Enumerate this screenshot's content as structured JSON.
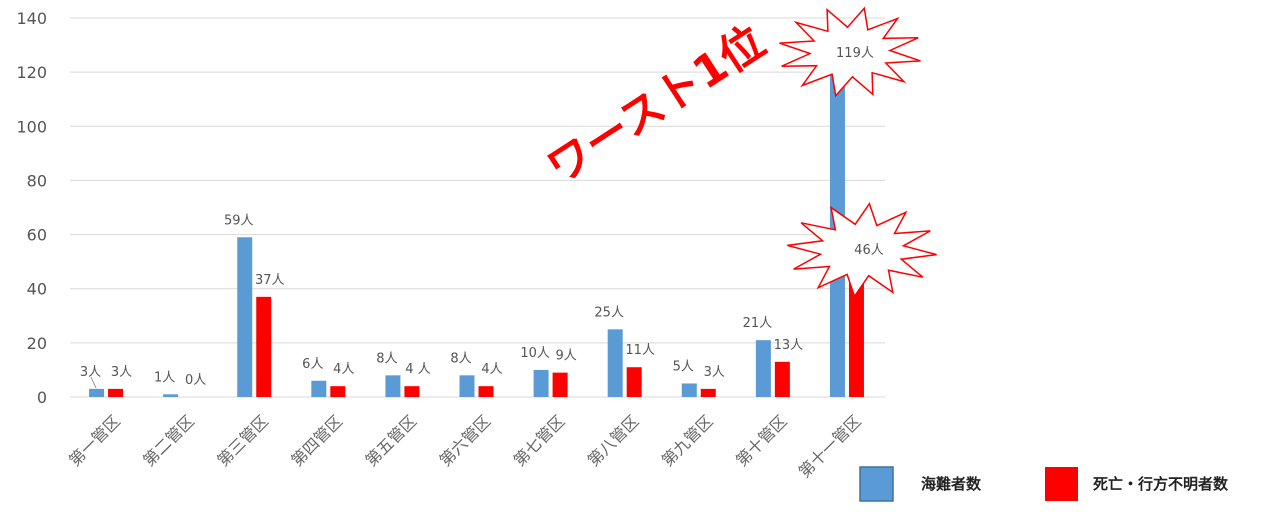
{
  "chart_data": {
    "type": "bar",
    "categories": [
      "第一管区",
      "第二管区",
      "第三管区",
      "第四管区",
      "第五管区",
      "第六管区",
      "第七管区",
      "第八管区",
      "第九管区",
      "第十管区",
      "第十一管区"
    ],
    "series": [
      {
        "name": "海難者数",
        "color": "#5b9bd5",
        "values": [
          3,
          1,
          59,
          6,
          8,
          8,
          10,
          25,
          5,
          21,
          119
        ],
        "labels": [
          "3人",
          "1人",
          "59人",
          "6人",
          "8人",
          "8人",
          "10人",
          "25人",
          "5人",
          "21人",
          "119人"
        ]
      },
      {
        "name": "死亡・行方不明者数",
        "color": "#ff0000",
        "values": [
          3,
          0,
          37,
          4,
          4,
          4,
          9,
          11,
          3,
          13,
          46
        ],
        "labels": [
          "3人",
          "0人",
          "37人",
          "4人",
          "4 人",
          "4人",
          "9人",
          "11人",
          "3人",
          "13人",
          "46人"
        ]
      }
    ],
    "ylim": [
      0,
      140
    ],
    "yticks": [
      "0",
      "20",
      "40",
      "60",
      "80",
      "100",
      "120",
      "140"
    ],
    "grid": true,
    "legend": "bottom-right",
    "annotation": {
      "text": "ワースト1位",
      "color": "#ff0000"
    }
  }
}
